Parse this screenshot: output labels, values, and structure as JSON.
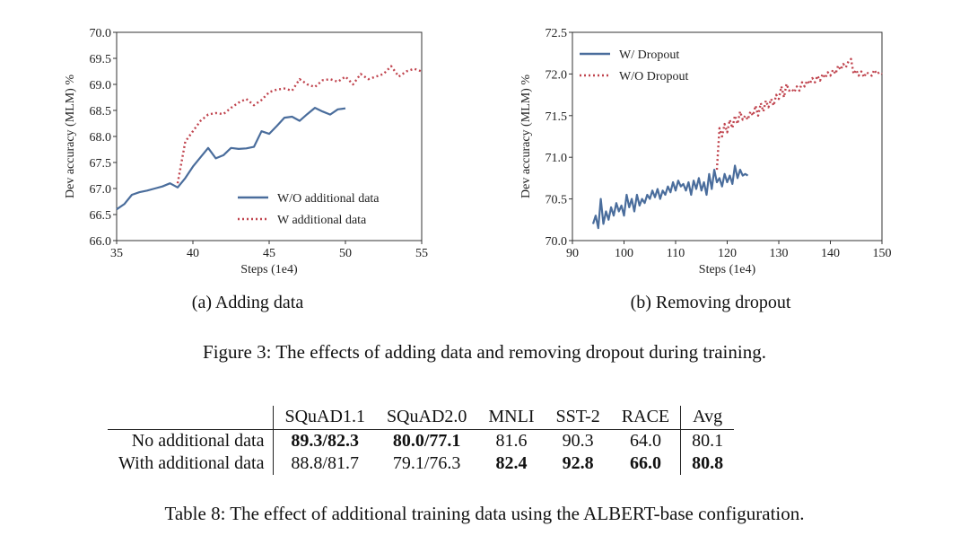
{
  "chart_data": [
    {
      "type": "line",
      "xlabel": "Steps (1e4)",
      "ylabel": "Dev accuracy (MLM) %",
      "xlim": [
        35,
        55
      ],
      "ylim": [
        66.0,
        70.0
      ],
      "xticks": [
        "35",
        "40",
        "45",
        "50",
        "55"
      ],
      "yticks": [
        "66.0",
        "66.5",
        "67.0",
        "67.5",
        "68.0",
        "68.5",
        "69.0",
        "69.5",
        "70.0"
      ],
      "legend_position": "lower-right",
      "grid": false,
      "series": [
        {
          "name": "W/O additional data",
          "style": "solid",
          "color": "#4a6d9c",
          "x": [
            35,
            35.5,
            36,
            36.5,
            37,
            37.5,
            38,
            38.5,
            39,
            39.5,
            40,
            40.5,
            41,
            41.5,
            42,
            42.5,
            43,
            43.5,
            44,
            44.5,
            45,
            45.5,
            46,
            46.5,
            47,
            47.5,
            48,
            48.5,
            49,
            49.5,
            50
          ],
          "y": [
            66.6,
            66.7,
            66.88,
            66.93,
            66.96,
            67.0,
            67.04,
            67.1,
            67.02,
            67.2,
            67.42,
            67.6,
            67.78,
            67.58,
            67.64,
            67.78,
            67.76,
            67.77,
            67.8,
            68.1,
            68.05,
            68.2,
            68.36,
            68.38,
            68.3,
            68.43,
            68.55,
            68.48,
            68.42,
            68.52,
            68.54
          ]
        },
        {
          "name": "W additional data",
          "style": "dotted",
          "color": "#c0444e",
          "x": [
            39,
            39.5,
            40,
            40.5,
            41,
            41.5,
            42,
            42.5,
            43,
            43.5,
            44,
            44.5,
            45,
            45.5,
            46,
            46.5,
            47,
            47.5,
            48,
            48.5,
            49,
            49.5,
            50,
            50.5,
            51,
            51.5,
            52,
            52.5,
            53,
            53.5,
            54,
            54.5,
            55
          ],
          "y": [
            67.1,
            67.9,
            68.1,
            68.3,
            68.42,
            68.45,
            68.43,
            68.55,
            68.65,
            68.72,
            68.6,
            68.7,
            68.85,
            68.9,
            68.92,
            68.88,
            69.1,
            69.0,
            68.95,
            69.08,
            69.1,
            69.05,
            69.15,
            69.0,
            69.2,
            69.1,
            69.15,
            69.2,
            69.35,
            69.15,
            69.25,
            69.3,
            69.25
          ]
        }
      ]
    },
    {
      "type": "line",
      "xlabel": "Steps (1e4)",
      "ylabel": "Dev accuracy (MLM) %",
      "xlim": [
        90,
        150
      ],
      "ylim": [
        70.0,
        72.5
      ],
      "xticks": [
        "90",
        "100",
        "110",
        "120",
        "130",
        "140",
        "150"
      ],
      "yticks": [
        "70.0",
        "70.5",
        "71.0",
        "71.5",
        "72.0",
        "72.5"
      ],
      "legend_position": "upper-left",
      "grid": false,
      "series": [
        {
          "name": "W/ Dropout",
          "style": "solid",
          "color": "#4a6d9c",
          "x": [
            94,
            94.5,
            95,
            95.5,
            96,
            96.5,
            97,
            97.5,
            98,
            98.5,
            99,
            99.5,
            100,
            100.5,
            101,
            101.5,
            102,
            102.5,
            103,
            103.5,
            104,
            104.5,
            105,
            105.5,
            106,
            106.5,
            107,
            107.5,
            108,
            108.5,
            109,
            109.5,
            110,
            110.5,
            111,
            111.5,
            112,
            112.5,
            113,
            113.5,
            114,
            114.5,
            115,
            115.5,
            116,
            116.5,
            117,
            117.5,
            118,
            118.5,
            119,
            119.5,
            120,
            120.5,
            121,
            121.5,
            122,
            122.5,
            123,
            123.5,
            124
          ],
          "y": [
            70.2,
            70.3,
            70.15,
            70.5,
            70.2,
            70.35,
            70.25,
            70.4,
            70.3,
            70.45,
            70.35,
            70.42,
            70.3,
            70.55,
            70.4,
            70.5,
            70.35,
            70.55,
            70.42,
            70.5,
            70.45,
            70.55,
            70.5,
            70.6,
            70.52,
            70.62,
            70.5,
            70.6,
            70.55,
            70.65,
            70.58,
            70.7,
            70.6,
            70.72,
            70.65,
            70.68,
            70.6,
            70.7,
            70.55,
            70.72,
            70.62,
            70.75,
            70.6,
            70.7,
            70.55,
            70.8,
            70.62,
            70.85,
            70.7,
            70.75,
            70.65,
            70.8,
            70.7,
            70.78,
            70.68,
            70.9,
            70.75,
            70.85,
            70.78,
            70.8,
            70.78
          ]
        },
        {
          "name": "W/O Dropout",
          "style": "dotted",
          "color": "#c0444e",
          "x": [
            118,
            118.5,
            119,
            119.5,
            120,
            120.5,
            121,
            121.5,
            122,
            122.5,
            123,
            123.5,
            124,
            124.5,
            125,
            125.5,
            126,
            126.5,
            127,
            127.5,
            128,
            128.5,
            129,
            129.5,
            130,
            130.5,
            131,
            131.5,
            132,
            132.5,
            133,
            133.5,
            134,
            134.5,
            135,
            135.5,
            136,
            136.5,
            137,
            137.5,
            138,
            138.5,
            139,
            139.5,
            140,
            140.5,
            141,
            141.5,
            142,
            142.5,
            143,
            143.5,
            144,
            144.5,
            145,
            145.5,
            146,
            146.5,
            147,
            147.5,
            148,
            148.5,
            149,
            149.5,
            150
          ],
          "y": [
            70.85,
            71.35,
            71.25,
            71.4,
            71.3,
            71.45,
            71.35,
            71.5,
            71.4,
            71.55,
            71.45,
            71.5,
            71.45,
            71.55,
            71.5,
            71.62,
            71.5,
            71.65,
            71.55,
            71.68,
            71.6,
            71.7,
            71.62,
            71.75,
            71.7,
            71.85,
            71.72,
            71.88,
            71.8,
            71.82,
            71.78,
            71.85,
            71.8,
            71.9,
            71.85,
            71.92,
            71.88,
            71.95,
            71.9,
            71.98,
            71.92,
            72.0,
            71.95,
            72.02,
            71.98,
            72.05,
            72.0,
            72.1,
            72.05,
            72.12,
            72.08,
            72.15,
            72.18,
            72.0,
            72.05,
            71.98,
            72.03,
            71.96,
            72.02,
            72.0,
            71.98,
            72.05,
            72.0,
            72.02,
            72.0
          ]
        }
      ]
    }
  ],
  "captions": {
    "subcap_a": "(a) Adding data",
    "subcap_b": "(b) Removing dropout",
    "figure": "Figure 3: The effects of adding data and removing dropout during training.",
    "table": "Table 8: The effect of additional training data using the ALBERT-base configuration."
  },
  "table": {
    "headers": [
      "SQuAD1.1",
      "SQuAD2.0",
      "MNLI",
      "SST-2",
      "RACE",
      "Avg"
    ],
    "rows": [
      {
        "label": "No additional data",
        "cells": [
          "89.3/82.3",
          "80.0/77.1",
          "81.6",
          "90.3",
          "64.0",
          "80.1"
        ],
        "bold": [
          true,
          true,
          false,
          false,
          false,
          false
        ]
      },
      {
        "label": "With additional data",
        "cells": [
          "88.8/81.7",
          "79.1/76.3",
          "82.4",
          "92.8",
          "66.0",
          "80.8"
        ],
        "bold": [
          false,
          false,
          true,
          true,
          true,
          true
        ]
      }
    ]
  }
}
